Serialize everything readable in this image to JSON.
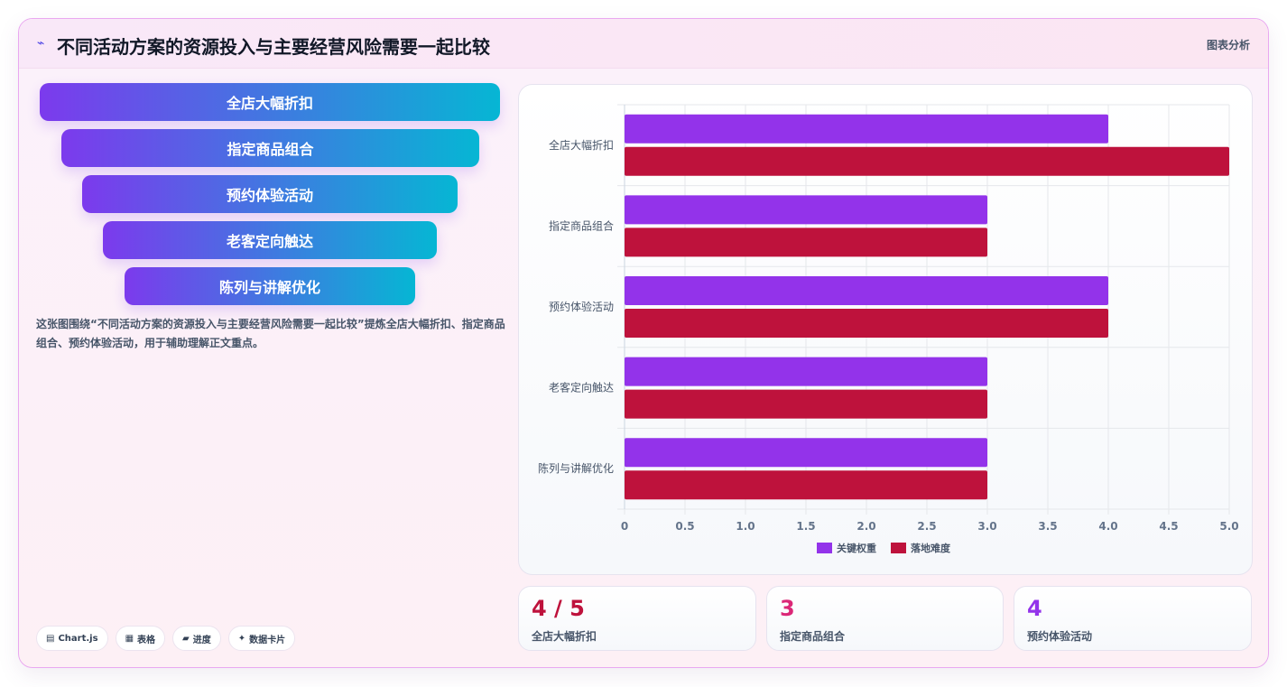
{
  "header": {
    "icon": "chart-icon",
    "title": "不同活动方案的资源投入与主要经营风险需要一起比较",
    "tag": "图表分析"
  },
  "funnel": {
    "items": [
      "全店大幅折扣",
      "指定商品组合",
      "预约体验活动",
      "老客定向触达",
      "陈列与讲解优化"
    ],
    "gradient": [
      "#7c3aed",
      "#06b6d4"
    ]
  },
  "description": "这张图围绕“不同活动方案的资源投入与主要经营风险需要一起比较”提炼全店大幅折扣、指定商品组合、预约体验活动，用于辅助理解正文重点。",
  "chips": [
    {
      "icon": "▤",
      "icon_name": "chart-icon",
      "label": "Chart.js"
    },
    {
      "icon": "▦",
      "icon_name": "table-icon",
      "label": "表格"
    },
    {
      "icon": "▰",
      "icon_name": "progress-icon",
      "label": "进度"
    },
    {
      "icon": "✦",
      "icon_name": "card-icon",
      "label": "数据卡片"
    }
  ],
  "chart_data": {
    "type": "bar",
    "orientation": "horizontal",
    "categories": [
      "全店大幅折扣",
      "指定商品组合",
      "预约体验活动",
      "老客定向触达",
      "陈列与讲解优化"
    ],
    "series": [
      {
        "name": "关键权重",
        "values": [
          4,
          3,
          4,
          3,
          3
        ],
        "color": "#9333ea"
      },
      {
        "name": "落地难度",
        "values": [
          5,
          3,
          4,
          3,
          3
        ],
        "color": "#be123c"
      }
    ],
    "xlim": [
      0,
      5
    ],
    "xticks": [
      "0",
      "0.5",
      "1.0",
      "1.5",
      "2.0",
      "2.5",
      "3.0",
      "3.5",
      "4.0",
      "4.5",
      "5.0"
    ],
    "grid": true,
    "legend": "bottom"
  },
  "stats": [
    {
      "value": "4 / 5",
      "label": "全店大幅折扣",
      "color": "#be123c"
    },
    {
      "value": "3",
      "label": "指定商品组合",
      "color": "#db2777"
    },
    {
      "value": "4",
      "label": "预约体验活动",
      "color": "#9333ea"
    }
  ]
}
